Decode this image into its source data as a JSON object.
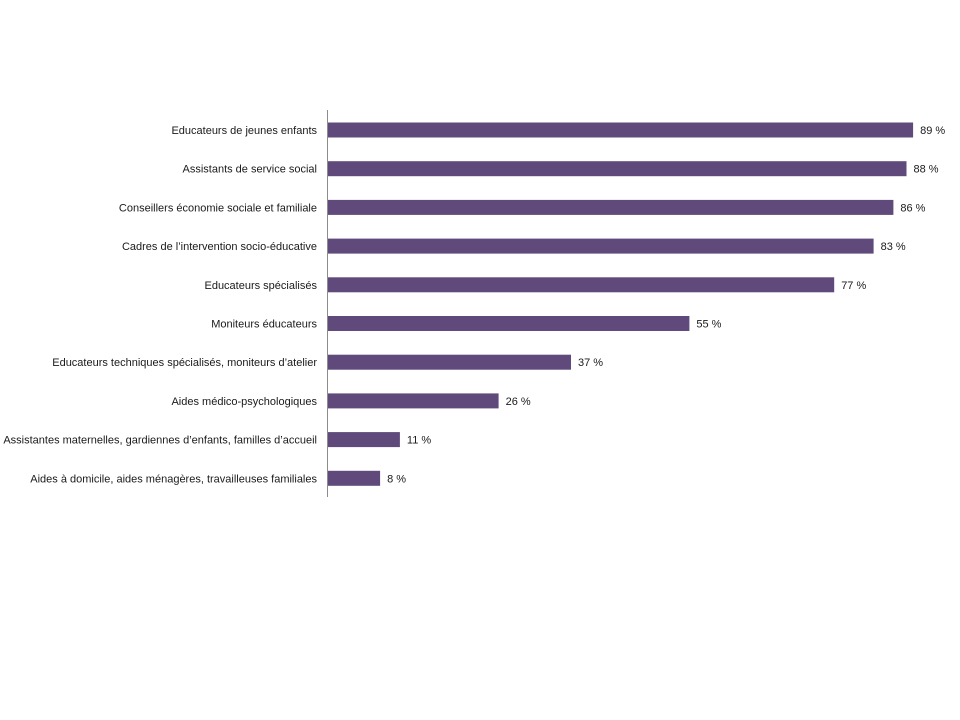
{
  "chart_data": {
    "type": "bar",
    "orientation": "horizontal",
    "categories": [
      "Educateurs de jeunes enfants",
      "Assistants de service social",
      "Conseillers économie sociale et familiale",
      "Cadres de l’intervention socio-éducative",
      "Educateurs spécialisés",
      "Moniteurs éducateurs",
      "Educateurs techniques spécialisés, moniteurs d’atelier",
      "Aides médico-psychologiques",
      "Assistantes maternelles, gardiennes d’enfants, familles d’accueil",
      "Aides à domicile, aides ménagères, travailleuses familiales"
    ],
    "values": [
      89,
      88,
      86,
      83,
      77,
      55,
      37,
      26,
      11,
      8
    ],
    "value_labels": [
      "89 %",
      "88 %",
      "86 %",
      "83 %",
      "77 %",
      "55 %",
      "37 %",
      "26 %",
      "11 %",
      "8 %"
    ],
    "xlim": [
      0,
      100
    ],
    "bar_color": "#5f4a7b",
    "axis_color": "#8c8c8c",
    "grid": false,
    "legend": "none"
  }
}
